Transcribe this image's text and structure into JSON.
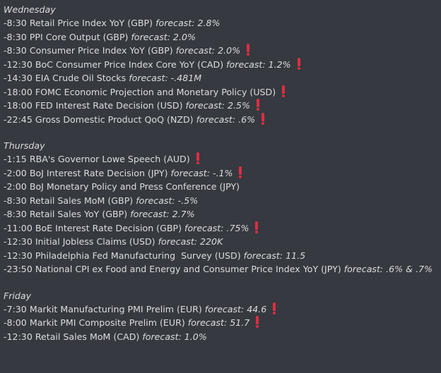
{
  "days": [
    {
      "name": "Wednesday",
      "events": [
        {
          "text": "-8:30 Retail Price Index YoY (GBP)",
          "forecast": "forecast: 2.8%",
          "important": false
        },
        {
          "text": "-8:30 PPI Core Output (GBP)",
          "forecast": "forecast: 2.0%",
          "important": false
        },
        {
          "text": "-8:30 Consumer Price Index YoY (GBP)",
          "forecast": "forecast: 2.0%",
          "important": true
        },
        {
          "text": "-12:30 BoC Consumer Price Index Core YoY (CAD)",
          "forecast": "forecast: 1.2%",
          "important": true
        },
        {
          "text": "-14:30 EIA Crude Oil Stocks",
          "forecast": "forecast: -.481M",
          "important": false
        },
        {
          "text": "-18:00 FOMC Economic Projection and Monetary Policy (USD)",
          "forecast": "",
          "important": true
        },
        {
          "text": "-18:00 FED Interest Rate Decision (USD)",
          "forecast": "forecast: 2.5%",
          "important": true
        },
        {
          "text": "-22:45 Gross Domestic Product QoQ (NZD)",
          "forecast": "forecast: .6%",
          "important": true
        }
      ]
    },
    {
      "name": "Thursday",
      "events": [
        {
          "text": "-1:15 RBA's Governor Lowe Speech (AUD)",
          "forecast": "",
          "important": true
        },
        {
          "text": "-2:00 BoJ Interest Rate Decision (JPY)",
          "forecast": "forecast: -.1%",
          "important": true
        },
        {
          "text": "-2:00 BoJ Monetary Policy and Press Conference (JPY)",
          "forecast": "",
          "important": false
        },
        {
          "text": "-8:30 Retail Sales MoM (GBP)",
          "forecast": "forecast: -.5%",
          "important": false
        },
        {
          "text": "-8:30 Retail Sales YoY (GBP)",
          "forecast": "forecast: 2.7%",
          "important": false
        },
        {
          "text": "-11:00 BoE Interest Rate Decision (GBP)",
          "forecast": "forecast: .75%",
          "important": true
        },
        {
          "text": "-12:30 Initial Jobless Claims (USD)",
          "forecast": "forecast: 220K",
          "important": false
        },
        {
          "text": "-12:30 Philadelphia Fed Manufacturing  Survey (USD)",
          "forecast": "forecast: 11.5",
          "important": false
        },
        {
          "text": "-23:50 National CPI ex Food and Energy and Consumer Price Index YoY (JPY)",
          "forecast": "forecast: .6% & .7%",
          "important": false
        }
      ]
    },
    {
      "name": "Friday",
      "events": [
        {
          "text": "-7:30 Markit Manufacturing PMI Prelim (EUR)",
          "forecast": "forecast: 44.6",
          "important": true
        },
        {
          "text": "-8:00 Markit PMI Composite Prelim (EUR)",
          "forecast": "forecast: 51.7",
          "important": true
        },
        {
          "text": "-12:30 Retail Sales MoM (CAD)",
          "forecast": "forecast: 1.0%",
          "important": false
        }
      ]
    }
  ],
  "colors": {
    "background": "#36393f",
    "text": "#dcddde",
    "important_mark": "#dd2e44"
  },
  "icons": {
    "important": "heavy-exclamation-mark-icon"
  }
}
